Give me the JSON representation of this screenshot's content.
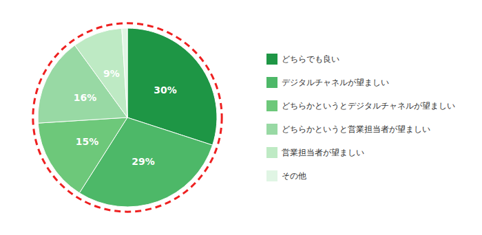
{
  "chart_data": {
    "type": "pie",
    "categories": [
      "どちらでも良い",
      "デジタルチャネルが望ましい",
      "どちらかというとデジタルチャネルが望ましい",
      "どちらかというと営業担当者が望ましい",
      "営業担当者が望ましい",
      "その他"
    ],
    "values": [
      30,
      29,
      15,
      16,
      9,
      1
    ],
    "value_labels": [
      "30%",
      "29%",
      "15%",
      "16%",
      "9%",
      null
    ],
    "colors": [
      "#1e9645",
      "#4db868",
      "#6dc87a",
      "#98d9a4",
      "#beeac4",
      "#e0f5e4"
    ],
    "data_labels": true,
    "legend": "right",
    "outline": {
      "color": "#ee2020",
      "line_style": "dashed"
    }
  }
}
